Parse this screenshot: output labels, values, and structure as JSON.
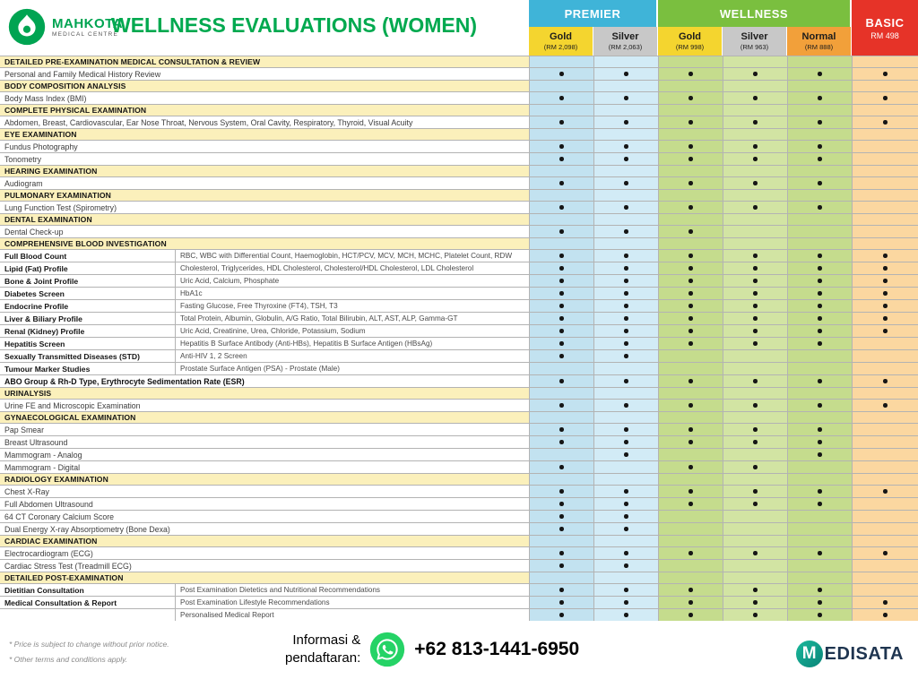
{
  "logo": {
    "name": "MAHKOTA",
    "subtitle": "MEDICAL CENTRE"
  },
  "title": "WELLNESS EVALUATIONS (WOMEN)",
  "table": {
    "groups": [
      {
        "label": "PREMIER",
        "color": "#3FB4D8"
      },
      {
        "label": "WELLNESS",
        "color": "#7ABF3F"
      }
    ],
    "basic": {
      "label": "BASIC",
      "price": "RM 498",
      "color": "#E63328"
    },
    "packages": [
      {
        "id": "premier-gold",
        "label": "Gold",
        "price": "(RM 2,098)",
        "head_bg": "#F4D52F",
        "body_bg": "#C2E2F0"
      },
      {
        "id": "premier-silver",
        "label": "Silver",
        "price": "(RM 2,063)",
        "head_bg": "#C8C8C8",
        "body_bg": "#D2EBF6"
      },
      {
        "id": "wellness-gold",
        "label": "Gold",
        "price": "(RM 998)",
        "head_bg": "#F4D52F",
        "body_bg": "#C5DC8D"
      },
      {
        "id": "wellness-silver",
        "label": "Silver",
        "price": "(RM 963)",
        "head_bg": "#C8C8C8",
        "body_bg": "#D2E4A3"
      },
      {
        "id": "wellness-normal",
        "label": "Normal",
        "price": "(RM 888)",
        "head_bg": "#F2A03A",
        "body_bg": "#C5DC8D"
      },
      {
        "id": "basic",
        "label": "",
        "price": "",
        "head_bg": "",
        "body_bg": "#FBD7A0"
      }
    ],
    "rows": [
      {
        "type": "section",
        "label": "DETAILED PRE-EXAMINATION MEDICAL CONSULTATION & REVIEW"
      },
      {
        "type": "item",
        "label": "Personal and Family Medical History Review",
        "dots": [
          1,
          1,
          1,
          1,
          1,
          1
        ]
      },
      {
        "type": "section",
        "label": "BODY COMPOSITION ANALYSIS"
      },
      {
        "type": "item",
        "label": "Body Mass Index (BMI)",
        "dots": [
          1,
          1,
          1,
          1,
          1,
          1
        ]
      },
      {
        "type": "section",
        "label": "COMPLETE PHYSICAL EXAMINATION"
      },
      {
        "type": "item",
        "label": "Abdomen, Breast, Cardiovascular, Ear Nose Throat, Nervous System, Oral Cavity, Respiratory, Thyroid, Visual Acuity",
        "dots": [
          1,
          1,
          1,
          1,
          1,
          1
        ]
      },
      {
        "type": "section",
        "label": "EYE EXAMINATION"
      },
      {
        "type": "item",
        "label": "Fundus Photography",
        "dots": [
          1,
          1,
          1,
          1,
          1,
          0
        ]
      },
      {
        "type": "item",
        "label": "Tonometry",
        "dots": [
          1,
          1,
          1,
          1,
          1,
          0
        ]
      },
      {
        "type": "section",
        "label": "HEARING EXAMINATION"
      },
      {
        "type": "item",
        "label": "Audiogram",
        "dots": [
          1,
          1,
          1,
          1,
          1,
          0
        ]
      },
      {
        "type": "section",
        "label": "PULMONARY EXAMINATION"
      },
      {
        "type": "item",
        "label": "Lung Function Test (Spirometry)",
        "dots": [
          1,
          1,
          1,
          1,
          1,
          0
        ]
      },
      {
        "type": "section",
        "label": "DENTAL EXAMINATION"
      },
      {
        "type": "item",
        "label": "Dental Check-up",
        "dots": [
          1,
          1,
          1,
          0,
          0,
          0
        ]
      },
      {
        "type": "section",
        "label": "COMPREHENSIVE BLOOD INVESTIGATION"
      },
      {
        "type": "item2",
        "label": "Full Blood Count",
        "detail": "RBC, WBC with Differential Count, Haemoglobin, HCT/PCV, MCV, MCH, MCHC, Platelet Count, RDW",
        "dots": [
          1,
          1,
          1,
          1,
          1,
          1
        ]
      },
      {
        "type": "item2",
        "label": "Lipid (Fat) Profile",
        "detail": "Cholesterol, Triglycerides, HDL Cholesterol, Cholesterol/HDL Cholesterol, LDL Cholesterol",
        "dots": [
          1,
          1,
          1,
          1,
          1,
          1
        ]
      },
      {
        "type": "item2",
        "label": "Bone & Joint Profile",
        "detail": "Uric Acid, Calcium, Phosphate",
        "dots": [
          1,
          1,
          1,
          1,
          1,
          1
        ]
      },
      {
        "type": "item2",
        "label": "Diabetes Screen",
        "detail": "HbA1c",
        "dots": [
          1,
          1,
          1,
          1,
          1,
          1
        ]
      },
      {
        "type": "item2",
        "label": "Endocrine Profile",
        "detail": "Fasting Glucose, Free Thyroxine (FT4), TSH, T3",
        "dots": [
          1,
          1,
          1,
          1,
          1,
          1
        ]
      },
      {
        "type": "item2",
        "label": "Liver & Biliary Profile",
        "detail": "Total Protein, Albumin, Globulin, A/G Ratio, Total Bilirubin, ALT, AST, ALP, Gamma-GT",
        "dots": [
          1,
          1,
          1,
          1,
          1,
          1
        ]
      },
      {
        "type": "item2",
        "label": "Renal (Kidney) Profile",
        "detail": "Uric Acid, Creatinine, Urea, Chloride, Potassium, Sodium",
        "dots": [
          1,
          1,
          1,
          1,
          1,
          1
        ]
      },
      {
        "type": "item2",
        "label": "Hepatitis Screen",
        "detail": "Hepatitis B Surface Antibody (Anti-HBs), Hepatitis B Surface Antigen (HBsAg)",
        "dots": [
          1,
          1,
          1,
          1,
          1,
          0
        ]
      },
      {
        "type": "item2",
        "label": "Sexually Transmitted Diseases (STD)",
        "detail": "Anti-HIV 1, 2 Screen",
        "dots": [
          1,
          1,
          0,
          0,
          0,
          0
        ]
      },
      {
        "type": "item2",
        "label": "Tumour Marker Studies",
        "detail": "Prostate Surface Antigen (PSA) - Prostate (Male)",
        "dots": [
          0,
          0,
          0,
          0,
          0,
          0
        ]
      },
      {
        "type": "item-bold",
        "label": "ABO Group & Rh-D Type, Erythrocyte Sedimentation Rate (ESR)",
        "dots": [
          1,
          1,
          1,
          1,
          1,
          1
        ]
      },
      {
        "type": "section",
        "label": "URINALYSIS"
      },
      {
        "type": "item",
        "label": "Urine FE and Microscopic Examination",
        "dots": [
          1,
          1,
          1,
          1,
          1,
          1
        ]
      },
      {
        "type": "section",
        "label": "GYNAECOLOGICAL EXAMINATION"
      },
      {
        "type": "item",
        "label": "Pap Smear",
        "dots": [
          1,
          1,
          1,
          1,
          1,
          0
        ]
      },
      {
        "type": "item",
        "label": "Breast Ultrasound",
        "dots": [
          1,
          1,
          1,
          1,
          1,
          0
        ]
      },
      {
        "type": "item",
        "label": "Mammogram - Analog",
        "dots": [
          0,
          1,
          0,
          0,
          1,
          0
        ]
      },
      {
        "type": "item",
        "label": "Mammogram - Digital",
        "dots": [
          1,
          0,
          1,
          1,
          0,
          0
        ]
      },
      {
        "type": "section",
        "label": "RADIOLOGY EXAMINATION"
      },
      {
        "type": "item",
        "label": "Chest X-Ray",
        "dots": [
          1,
          1,
          1,
          1,
          1,
          1
        ]
      },
      {
        "type": "item",
        "label": "Full Abdomen Ultrasound",
        "dots": [
          1,
          1,
          1,
          1,
          1,
          0
        ]
      },
      {
        "type": "item",
        "label": "64 CT Coronary Calcium Score",
        "dots": [
          1,
          1,
          0,
          0,
          0,
          0
        ]
      },
      {
        "type": "item",
        "label": "Dual Energy X-ray Absorptiometry (Bone Dexa)",
        "dots": [
          1,
          1,
          0,
          0,
          0,
          0
        ]
      },
      {
        "type": "section",
        "label": "CARDIAC EXAMINATION"
      },
      {
        "type": "item",
        "label": "Electrocardiogram (ECG)",
        "dots": [
          1,
          1,
          1,
          1,
          1,
          1
        ]
      },
      {
        "type": "item",
        "label": "Cardiac Stress Test (Treadmill ECG)",
        "dots": [
          1,
          1,
          0,
          0,
          0,
          0
        ]
      },
      {
        "type": "section",
        "label": "DETAILED POST-EXAMINATION"
      },
      {
        "type": "item2",
        "label": "Dietitian Consultation",
        "detail": "Post Examination Dietetics and Nutritional Recommendations",
        "dots": [
          1,
          1,
          1,
          1,
          1,
          0
        ]
      },
      {
        "type": "item2",
        "label": "Medical Consultation & Report",
        "detail": "Post Examination Lifestyle Recommendations",
        "dots": [
          1,
          1,
          1,
          1,
          1,
          1
        ]
      },
      {
        "type": "item2",
        "label": "",
        "detail": "Personalised Medical Report",
        "dots": [
          1,
          1,
          1,
          1,
          1,
          1
        ]
      }
    ]
  },
  "footer": {
    "note1": "* Price is subject to change without prior notice.",
    "note2": "* Other terms and conditions apply.",
    "contact_line1": "Informasi &",
    "contact_line2": "pendaftaran:",
    "phone": "+62 813-1441-6950",
    "whatsapp_color": "#25D366",
    "brand_initial": "M",
    "brand_rest": "EDISATA"
  }
}
